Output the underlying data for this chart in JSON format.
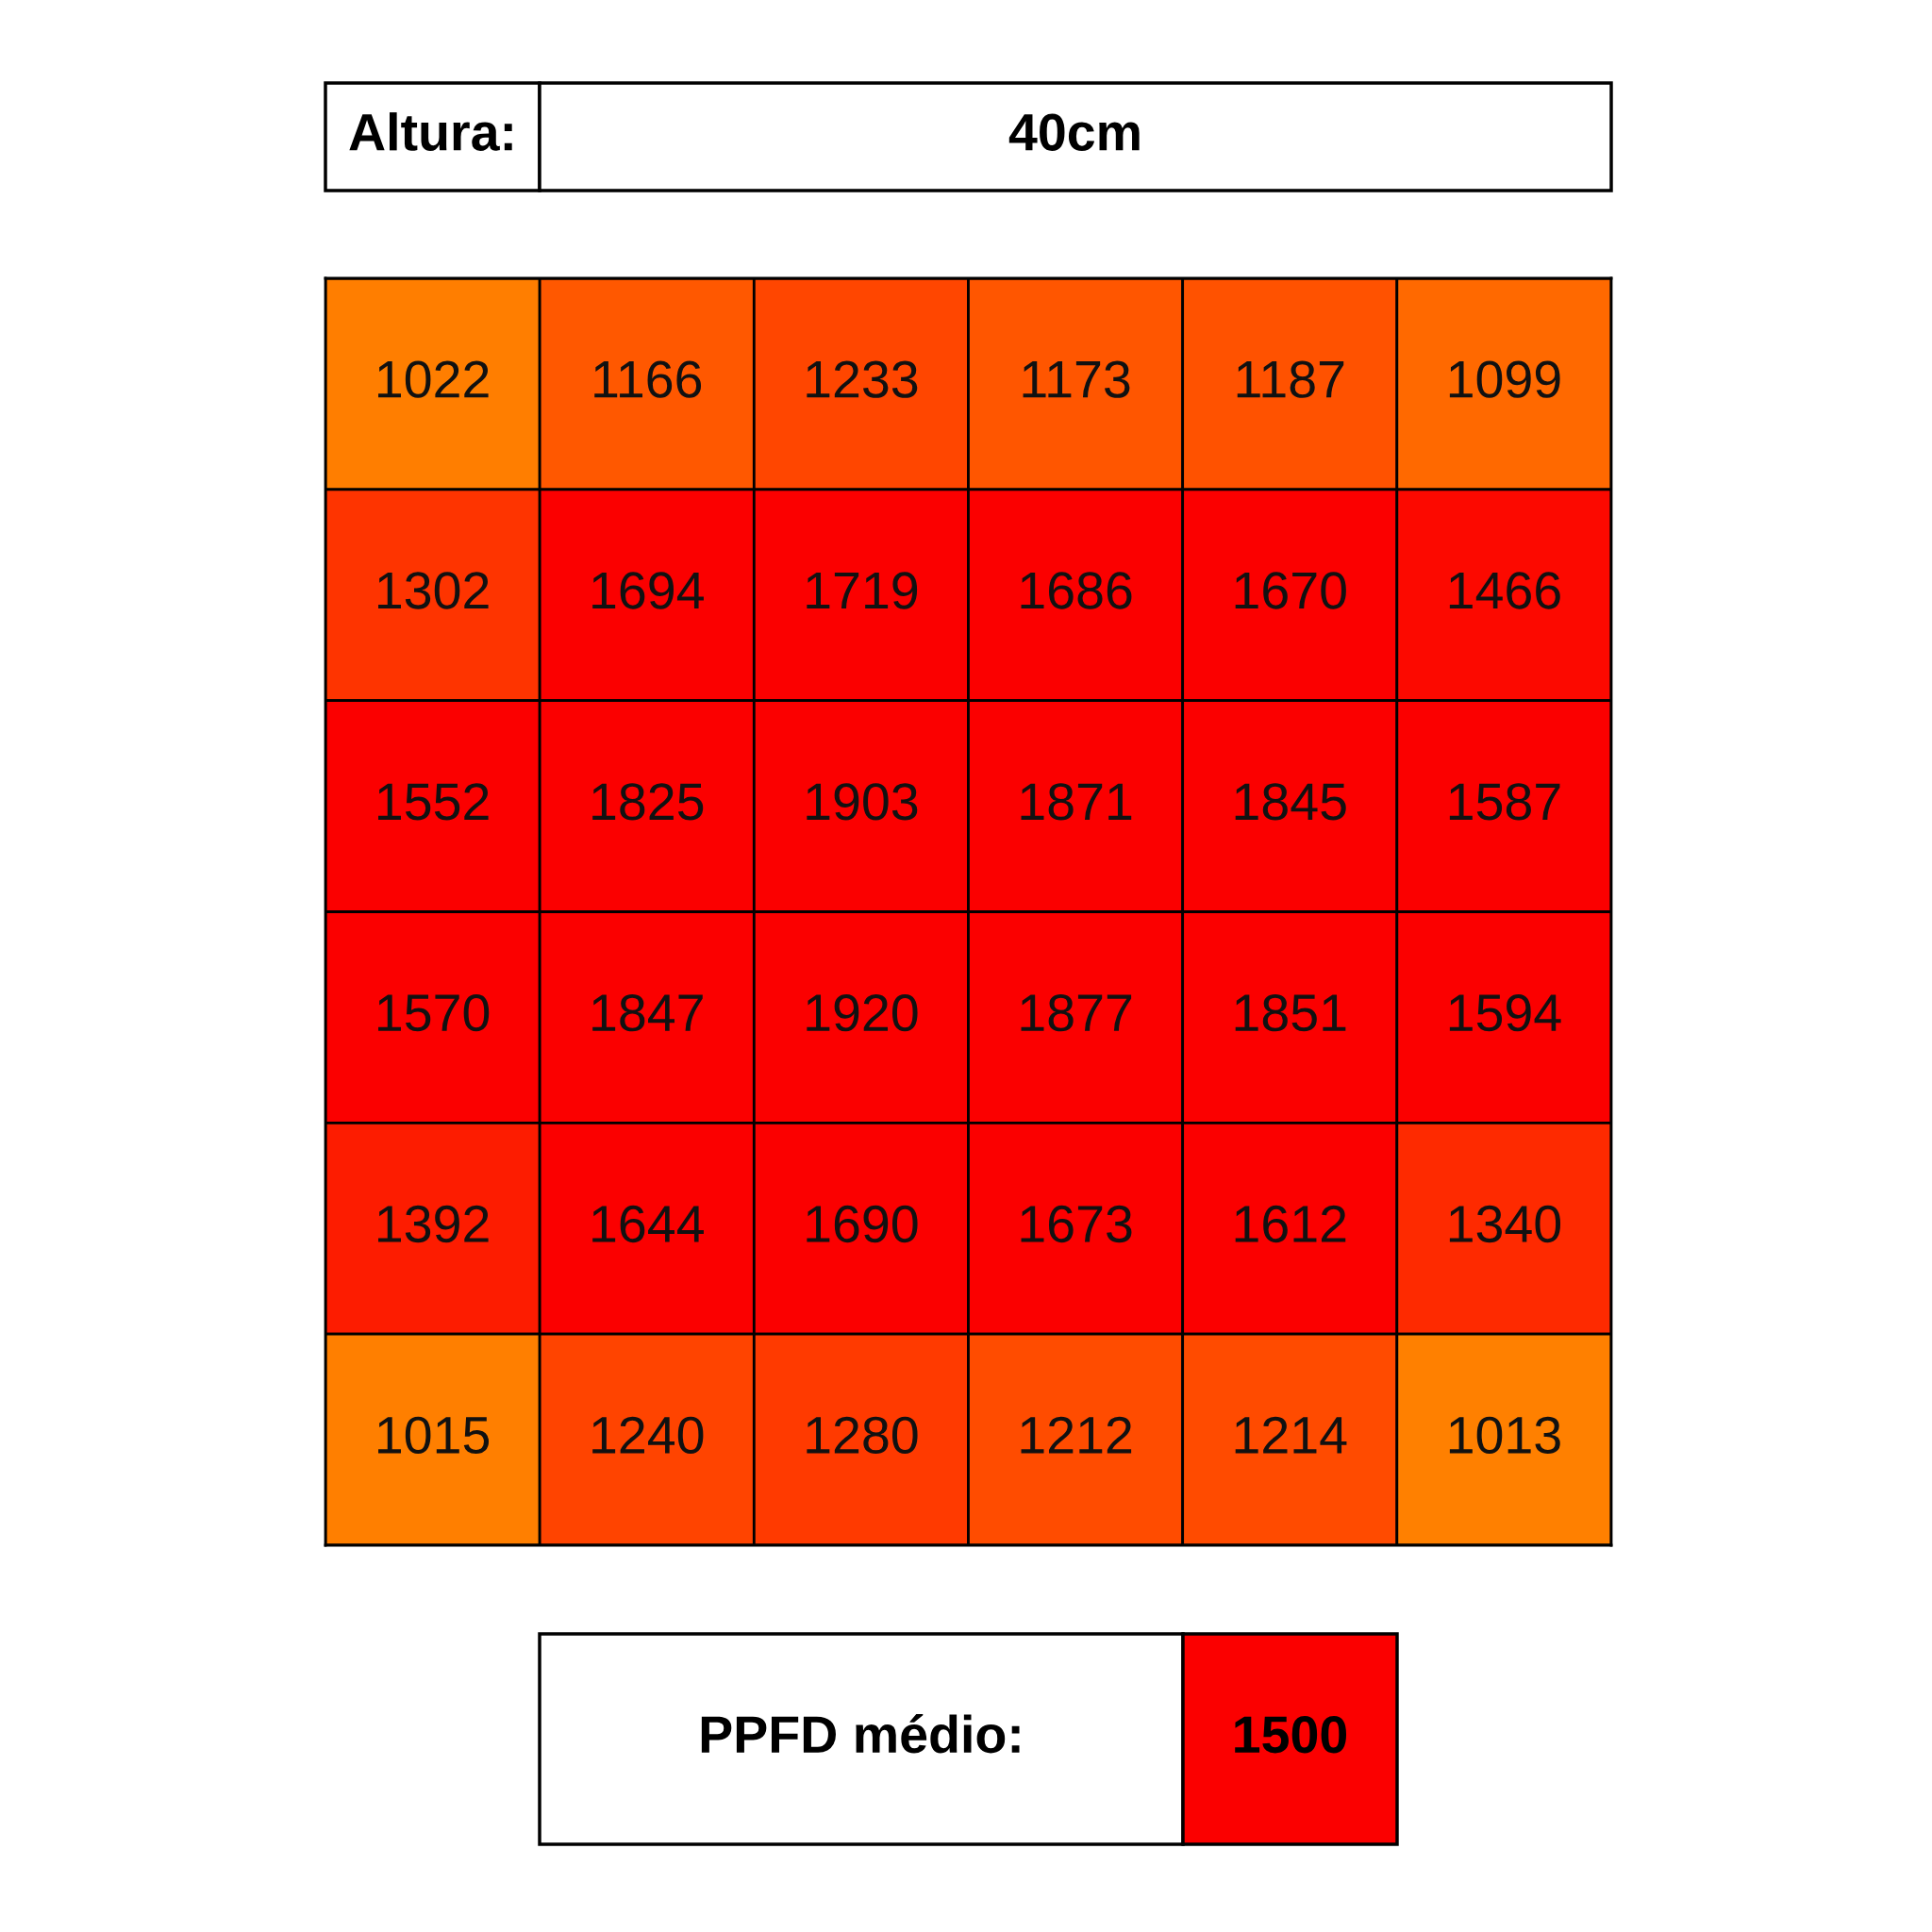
{
  "chart_data": {
    "type": "heatmap",
    "categories": [
      null,
      null,
      null,
      null,
      null,
      null
    ],
    "y_categories": [
      null,
      null,
      null,
      null,
      null,
      null
    ],
    "cells": [
      [
        1022,
        1166,
        1233,
        1173,
        1187,
        1099
      ],
      [
        1302,
        1694,
        1719,
        1686,
        1670,
        1466
      ],
      [
        1552,
        1825,
        1903,
        1871,
        1845,
        1587
      ],
      [
        1570,
        1847,
        1920,
        1877,
        1851,
        1594
      ],
      [
        1392,
        1644,
        1690,
        1673,
        1612,
        1340
      ],
      [
        1015,
        1240,
        1280,
        1212,
        1214,
        1013
      ]
    ],
    "data_labels": true,
    "annotations": [
      "Altura:",
      "40cm",
      "PPFD médio:",
      "1500"
    ]
  }
}
